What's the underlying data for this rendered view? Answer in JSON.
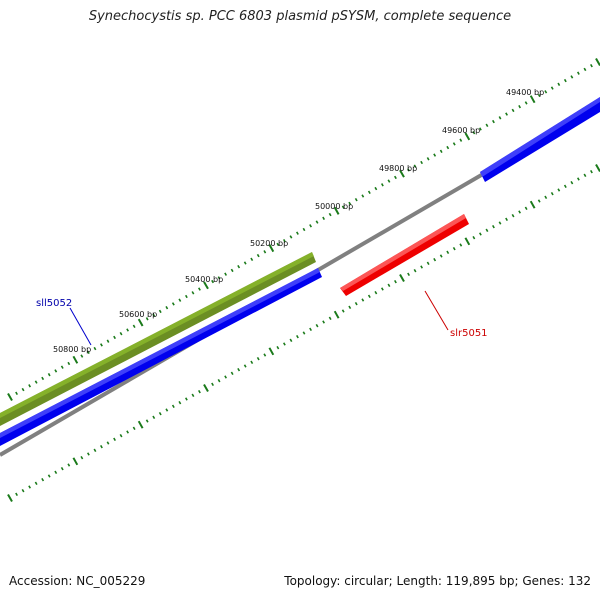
{
  "title": "Synechocystis sp. PCC 6803 plasmid pSYSM, complete sequence",
  "accession": "Accession: NC_005229",
  "summary": "Topology: circular; Length: 119,895 bp; Genes: 132",
  "colors": {
    "backbone": "#808080",
    "forward_gene": "#0000ee",
    "reverse_gene": "#ee0000",
    "selected_gene": "#6b8e23",
    "ticks": "#1a7a1a",
    "label_forward": "#0000aa",
    "label_reverse": "#cc0000"
  },
  "ruler_labels": [
    {
      "text": "49400 bp"
    },
    {
      "text": "49600 bp"
    },
    {
      "text": "49800 bp"
    },
    {
      "text": "50000 bp"
    },
    {
      "text": "50200 bp"
    },
    {
      "text": "50400 bp"
    },
    {
      "text": "50600 bp"
    },
    {
      "text": "50800 bp"
    }
  ],
  "gene_labels": {
    "sll5052": "sll5052",
    "slr5051": "slr5051"
  }
}
